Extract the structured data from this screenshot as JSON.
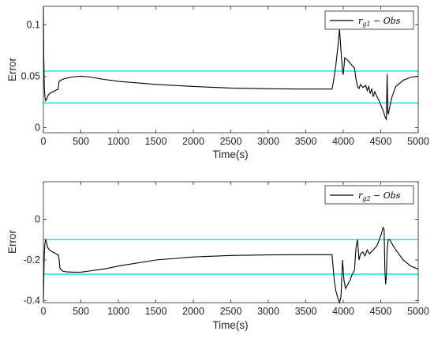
{
  "chart_data": [
    {
      "type": "line",
      "xlabel": "Time(s)",
      "ylabel": "Error",
      "xlim": [
        0,
        5000
      ],
      "ylim": [
        -0.005,
        0.118
      ],
      "xticks": [
        "0",
        "500",
        "1000",
        "1500",
        "2000",
        "2500",
        "3000",
        "3500",
        "4000",
        "4500",
        "5000"
      ],
      "yticks": [
        {
          "value": 0,
          "label": "0"
        },
        {
          "value": 0.05,
          "label": "0.05"
        },
        {
          "value": 0.1,
          "label": "0.1"
        }
      ],
      "grid": false,
      "legend_position": "top-right",
      "legend_base": "r",
      "legend_sub": "g1",
      "legend_rest": " − Obs",
      "series_color": "#000000",
      "threshold_color": "#00e5ee",
      "thresholds": [
        0.055,
        0.024
      ],
      "series": [
        {
          "x": [
            0,
            5,
            12,
            20,
            30,
            40,
            50,
            60,
            80,
            100,
            130,
            160,
            180,
            195,
            210,
            230,
            260,
            300,
            400,
            500,
            600,
            800,
            1000,
            1500,
            2000,
            2500,
            3000,
            3500,
            3850,
            3870,
            3900,
            3930,
            3950,
            3970,
            3990,
            4000,
            4020,
            4050,
            4080,
            4110,
            4150,
            4170,
            4190,
            4210,
            4230,
            4260,
            4300,
            4320,
            4340,
            4360,
            4380,
            4400,
            4420,
            4450,
            4480,
            4500,
            4530,
            4560,
            4575,
            4585,
            4595,
            4600,
            4620,
            4650,
            4700,
            4800,
            4900,
            5000
          ],
          "y": [
            0.118,
            0.07,
            0.04,
            0.03,
            0.026,
            0.027,
            0.029,
            0.031,
            0.033,
            0.034,
            0.035,
            0.036,
            0.037,
            0.037,
            0.045,
            0.046,
            0.047,
            0.048,
            0.0495,
            0.05,
            0.0495,
            0.047,
            0.045,
            0.042,
            0.04,
            0.0385,
            0.0378,
            0.0375,
            0.0375,
            0.045,
            0.06,
            0.08,
            0.096,
            0.075,
            0.055,
            0.0515,
            0.068,
            0.066,
            0.064,
            0.061,
            0.058,
            0.047,
            0.04,
            0.038,
            0.042,
            0.039,
            0.041,
            0.036,
            0.04,
            0.033,
            0.038,
            0.03,
            0.035,
            0.03,
            0.026,
            0.022,
            0.017,
            0.01,
            0.008,
            0.052,
            0.015,
            0.013,
            0.02,
            0.03,
            0.04,
            0.046,
            0.049,
            0.05
          ]
        }
      ]
    },
    {
      "type": "line",
      "xlabel": "Time(s)",
      "ylabel": "Error",
      "xlim": [
        0,
        5000
      ],
      "ylim": [
        -0.41,
        0.185
      ],
      "xticks": [
        "0",
        "500",
        "1000",
        "1500",
        "2000",
        "2500",
        "3000",
        "3500",
        "4000",
        "4500",
        "5000"
      ],
      "yticks": [
        {
          "value": 0,
          "label": "0"
        },
        {
          "value": -0.2,
          "label": "-0.2"
        },
        {
          "value": -0.4,
          "label": "-0.4"
        }
      ],
      "grid": false,
      "legend_position": "top-right",
      "legend_base": "r",
      "legend_sub": "g2",
      "legend_rest": " − Obs",
      "series_color": "#000000",
      "threshold_color": "#00e5ee",
      "thresholds": [
        -0.1,
        -0.27
      ],
      "series": [
        {
          "x": [
            0,
            5,
            10,
            15,
            20,
            30,
            40,
            50,
            60,
            80,
            100,
            120,
            150,
            170,
            190,
            200,
            210,
            220,
            240,
            260,
            300,
            400,
            500,
            600,
            800,
            1000,
            1500,
            2000,
            2500,
            3000,
            3500,
            3850,
            3880,
            3900,
            3930,
            3950,
            3970,
            3990,
            4010,
            4030,
            4060,
            4090,
            4120,
            4150,
            4170,
            4190,
            4210,
            4230,
            4260,
            4290,
            4320,
            4350,
            4400,
            4450,
            4480,
            4510,
            4530,
            4545,
            4555,
            4565,
            4575,
            4585,
            4590,
            4600,
            4620,
            4650,
            4700,
            4800,
            4900,
            5000
          ],
          "y": [
            -0.41,
            -0.3,
            -0.2,
            -0.15,
            -0.12,
            -0.1,
            -0.11,
            -0.13,
            -0.14,
            -0.15,
            -0.155,
            -0.16,
            -0.165,
            -0.17,
            -0.175,
            -0.175,
            -0.2,
            -0.24,
            -0.25,
            -0.255,
            -0.258,
            -0.26,
            -0.26,
            -0.255,
            -0.245,
            -0.23,
            -0.2,
            -0.185,
            -0.178,
            -0.175,
            -0.174,
            -0.174,
            -0.3,
            -0.35,
            -0.39,
            -0.41,
            -0.38,
            -0.2,
            -0.3,
            -0.34,
            -0.32,
            -0.3,
            -0.27,
            -0.25,
            -0.14,
            -0.1,
            -0.2,
            -0.17,
            -0.16,
            -0.18,
            -0.15,
            -0.17,
            -0.15,
            -0.13,
            -0.1,
            -0.07,
            -0.04,
            -0.05,
            -0.25,
            -0.32,
            -0.28,
            -0.15,
            -0.13,
            -0.1,
            -0.1,
            -0.12,
            -0.15,
            -0.2,
            -0.23,
            -0.245
          ]
        }
      ]
    }
  ]
}
